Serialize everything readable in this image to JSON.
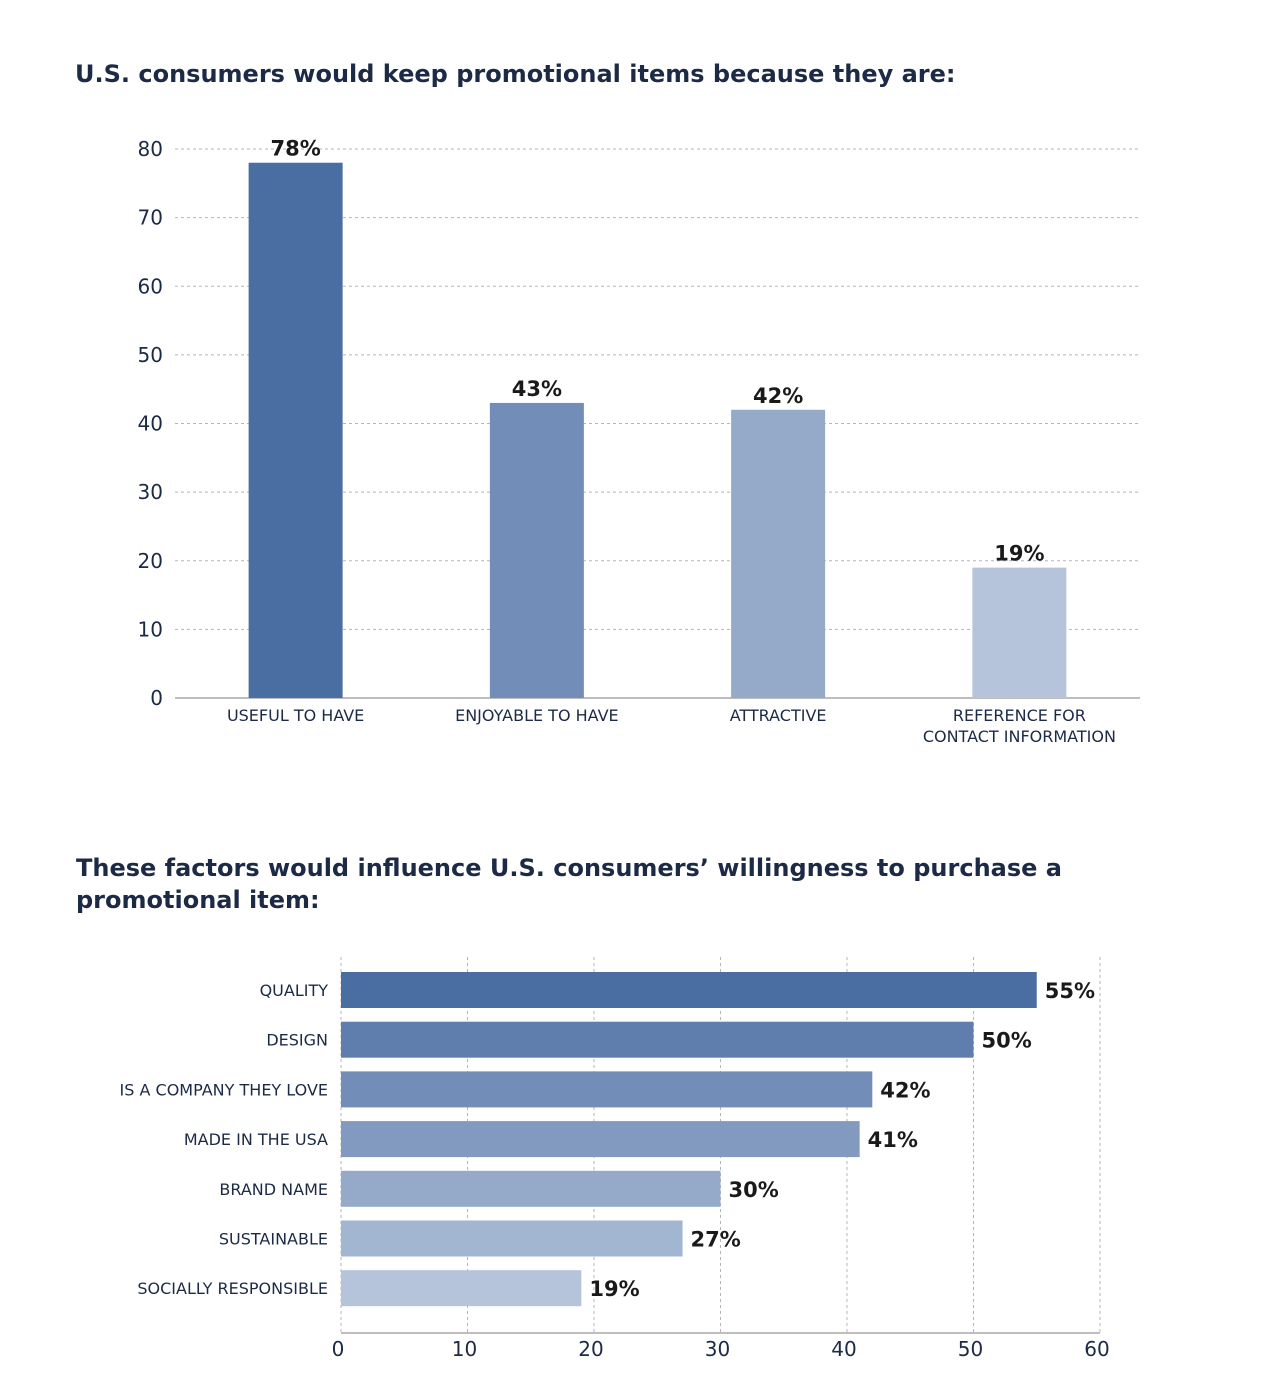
{
  "chart_data": [
    {
      "type": "bar",
      "orientation": "vertical",
      "title": "U.S. consumers would keep promotional items because they are:",
      "categories": [
        "USEFUL TO HAVE",
        "ENJOYABLE TO HAVE",
        "ATTRACTIVE",
        "REFERENCE FOR\nCONTACT INFORMATION"
      ],
      "values": [
        78,
        43,
        42,
        19
      ],
      "data_labels": [
        "78%",
        "43%",
        "42%",
        "19%"
      ],
      "colors": [
        "#4a6ea2",
        "#718db8",
        "#95aac9",
        "#b5c4da"
      ],
      "ylim": [
        0,
        80
      ],
      "yticks": [
        0,
        10,
        20,
        30,
        40,
        50,
        60,
        70,
        80
      ],
      "grid": true
    },
    {
      "type": "bar",
      "orientation": "horizontal",
      "title": "These factors would influence U.S. consumers’ willingness to purchase a promotional item:",
      "categories": [
        "QUALITY",
        "DESIGN",
        "IS A COMPANY THEY LOVE",
        "MADE IN THE USA",
        "BRAND NAME",
        "SUSTAINABLE",
        "SOCIALLY RESPONSIBLE"
      ],
      "values": [
        55,
        50,
        42,
        41,
        30,
        27,
        19
      ],
      "data_labels": [
        "55%",
        "50%",
        "42%",
        "41%",
        "30%",
        "27%",
        "19%"
      ],
      "colors": [
        "#4a6ea2",
        "#5f7eae",
        "#718db8",
        "#8299c0",
        "#95aac9",
        "#a3b6d1",
        "#b5c4da"
      ],
      "xlim": [
        0,
        60
      ],
      "xticks": [
        0,
        10,
        20,
        30,
        40,
        50,
        60
      ],
      "grid": true
    }
  ]
}
